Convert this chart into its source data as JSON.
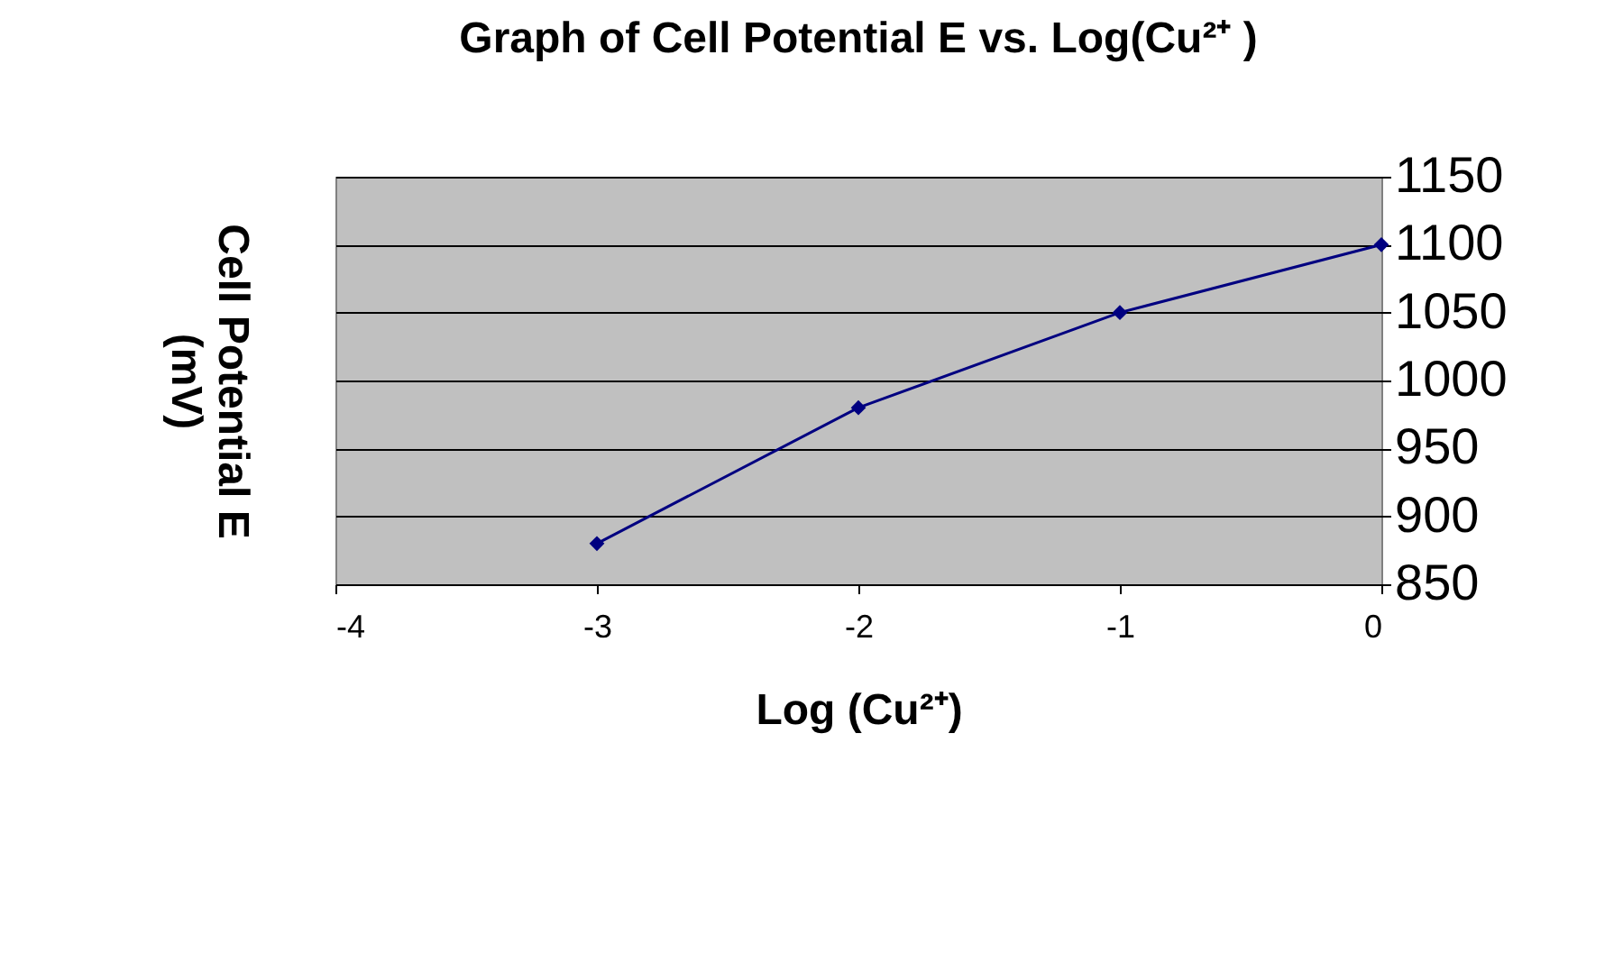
{
  "chart_data": {
    "type": "line",
    "title": "Graph of Cell Potential E vs. Log(Cu²⁺ )",
    "xlabel": "Log (Cu²⁺)",
    "ylabel": "Cell Potential E (mV)",
    "x": [
      -3,
      -2,
      -1,
      0
    ],
    "series": [
      {
        "color": "#000080",
        "values": [
          880,
          980,
          1050,
          1100
        ]
      }
    ],
    "xlim": [
      -4,
      0
    ],
    "xticks": [
      -4,
      -3,
      -2,
      -1,
      0
    ],
    "ylim": [
      850,
      1150
    ],
    "yticks": [
      850,
      900,
      950,
      1000,
      1050,
      1100,
      1150
    ],
    "grid": "y",
    "legend": false,
    "marker": "diamond",
    "line_style": "solid"
  }
}
